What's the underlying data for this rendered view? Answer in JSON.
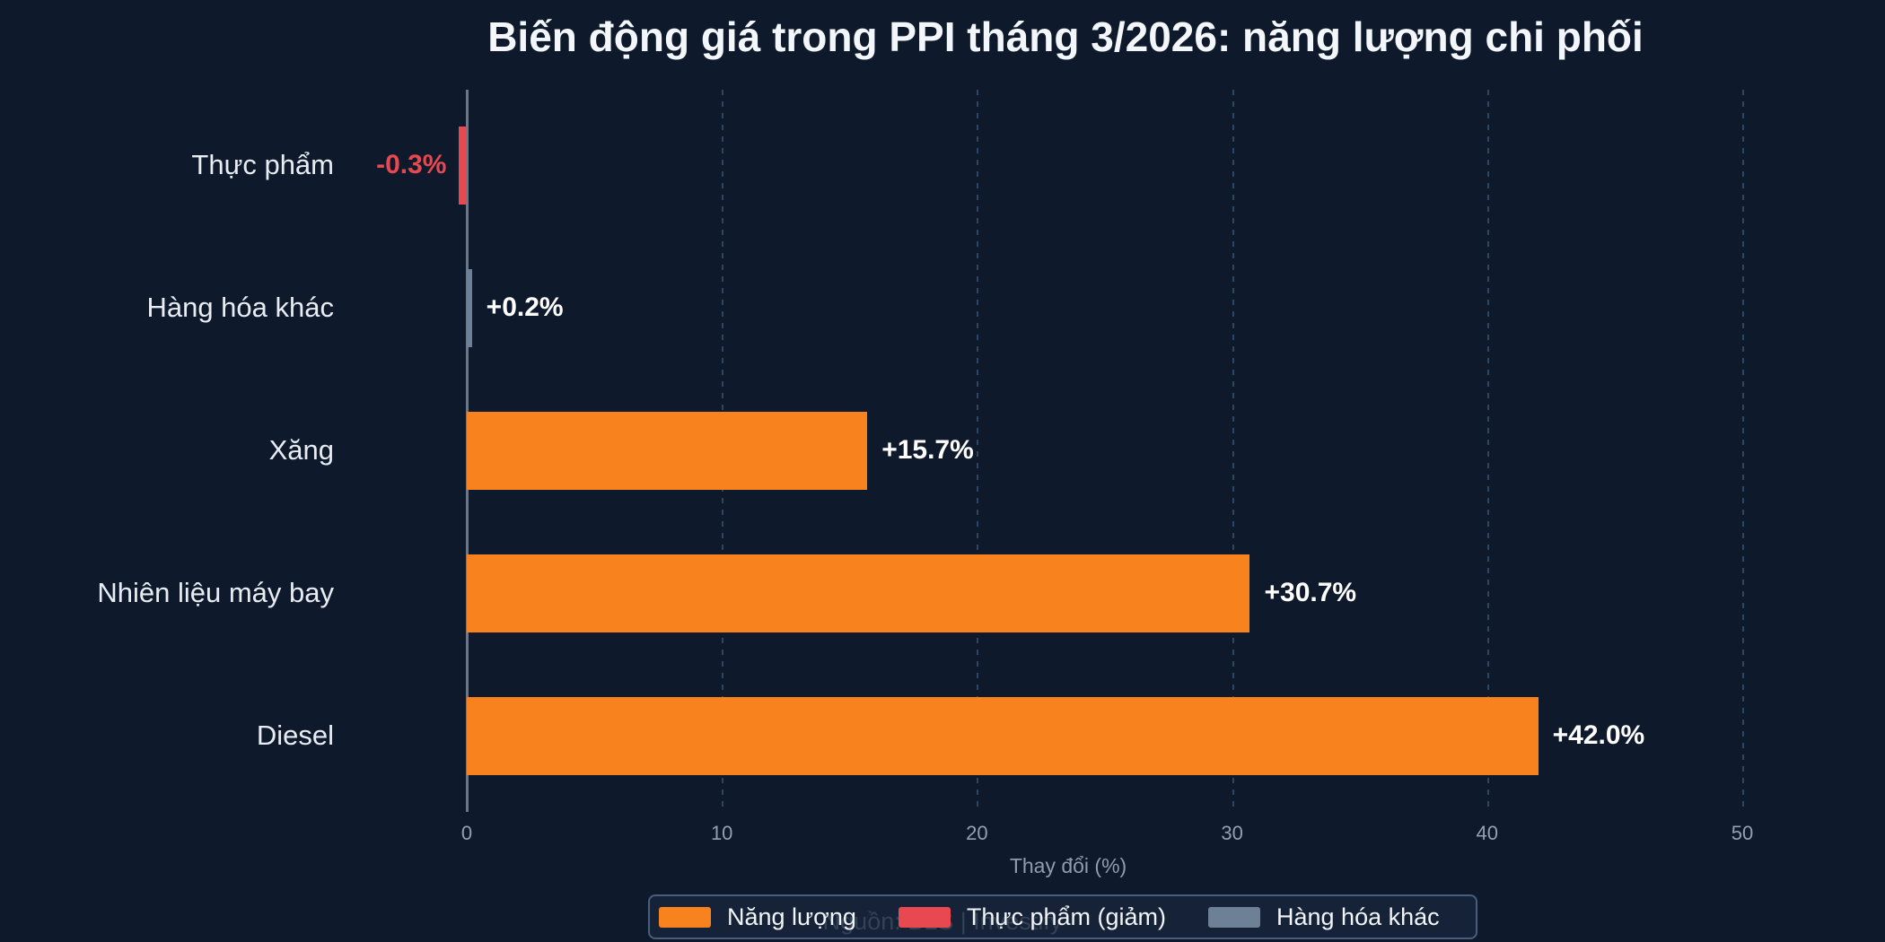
{
  "title": "Biến động giá trong PPI tháng 3/2026: năng lượng chi phối",
  "chart_data": {
    "type": "bar",
    "orientation": "horizontal",
    "title": "Biến động giá trong PPI tháng 3/2026: năng lượng chi phối",
    "categories": [
      "Thực phẩm",
      "Hàng hóa khác",
      "Xăng",
      "Nhiên liệu máy bay",
      "Diesel"
    ],
    "values": [
      -0.3,
      0.2,
      15.7,
      30.7,
      42.0
    ],
    "value_labels": [
      "-0.3%",
      "+0.2%",
      "+15.7%",
      "+30.7%",
      "+42.0%"
    ],
    "bar_colors": [
      "#e8484f",
      "#6e8096",
      "#f8821d",
      "#f8821d",
      "#f8821d"
    ],
    "value_label_colors": [
      "#e8484f",
      "#ffffff",
      "#ffffff",
      "#ffffff",
      "#ffffff"
    ],
    "xlabel": "Thay đổi (%)",
    "xticks": [
      "0",
      "10",
      "20",
      "30",
      "40",
      "50"
    ],
    "xtick_values": [
      0,
      10,
      20,
      30,
      40,
      50
    ],
    "xlim": [
      -0.5,
      50
    ],
    "grid": "vertical-dashed",
    "legend_position": "bottom-center"
  },
  "legend": {
    "items": [
      {
        "label": "Năng lượng",
        "color": "#f8821d"
      },
      {
        "label": "Thực phẩm (giảm)",
        "color": "#e8484f"
      },
      {
        "label": "Hàng hóa khác",
        "color": "#6e8096"
      }
    ]
  },
  "source_note": "Nguồn: BLS | Investify",
  "colors": {
    "background": "#0e1a2b",
    "bar_energy": "#f8821d",
    "bar_food": "#e8484f",
    "bar_other": "#6e8096",
    "axis_line": "#69788c",
    "gridline": "rgba(93,130,175,0.42)",
    "tick_text": "#93a0b2",
    "category_text": "#e7edf3",
    "title_text": "#f3f7fb"
  }
}
